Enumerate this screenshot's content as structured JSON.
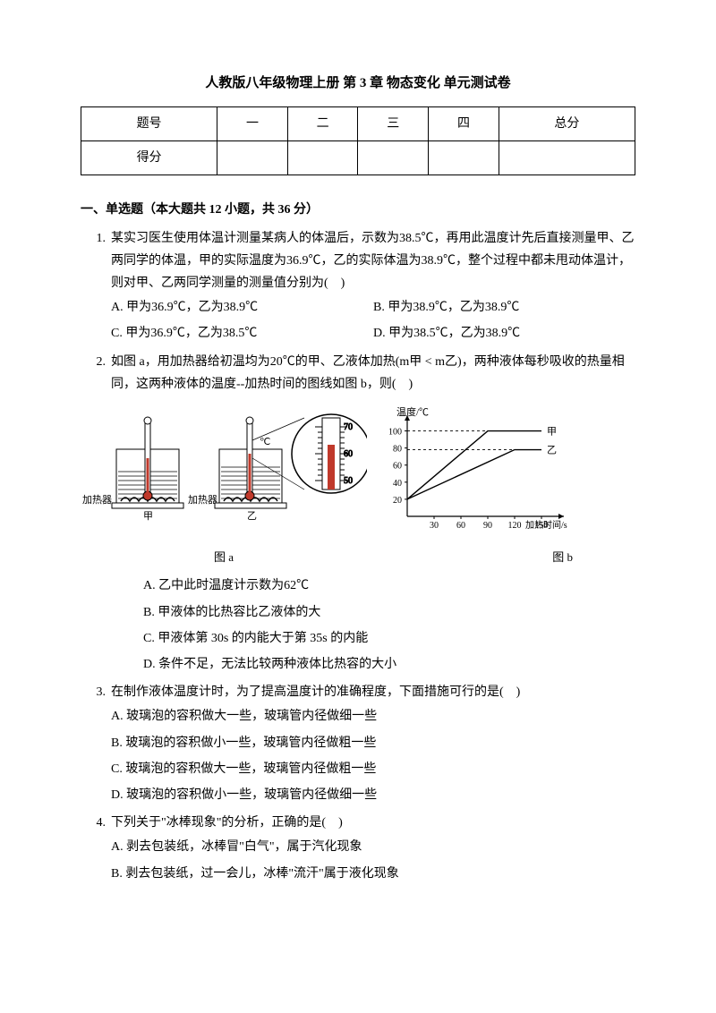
{
  "title": "人教版八年级物理上册 第 3 章 物态变化 单元测试卷",
  "scoreTable": {
    "rows": [
      [
        "题号",
        "一",
        "二",
        "三",
        "四",
        "总分"
      ],
      [
        "得分",
        "",
        "",
        "",
        "",
        ""
      ]
    ]
  },
  "section1": {
    "heading": "一、单选题（本大题共 12 小题，共 36 分）"
  },
  "q1": {
    "num": "1.",
    "text": "某实习医生使用体温计测量某病人的体温后，示数为38.5℃，再用此温度计先后直接测量甲、乙两同学的体温，甲的实际温度为36.9℃，乙的实际体温为38.9℃，整个过程中都未甩动体温计，则对甲、乙两同学测量的测量值分别为(　)",
    "A": "A. 甲为36.9℃，乙为38.9℃",
    "B": "B. 甲为38.9℃，乙为38.9℃",
    "C": "C. 甲为36.9℃，乙为38.5℃",
    "D": "D. 甲为38.5℃，乙为38.9℃"
  },
  "q2": {
    "num": "2.",
    "text": "如图 a，用加热器给初温均为20℃的甲、乙液体加热(m甲 < m乙)，两种液体每秒吸收的热量相同，这两种液体的温度--加热时间的图线如图 b，则(　)",
    "A": "A. 乙中此时温度计示数为62℃",
    "B": "B. 甲液体的比热容比乙液体的大",
    "C": "C. 甲液体第 30s 的内能大于第 35s 的内能",
    "D": "D. 条件不足，无法比较两种液体比热容的大小",
    "figA": {
      "heater_label": "加热器",
      "caption": "图 a",
      "thermo_ticks": [
        "70",
        "60",
        "50"
      ],
      "beaker1_label": "甲",
      "beaker2_label": "乙",
      "colors": {
        "liquid": "#d0d0d0",
        "mercury": "#c0392b",
        "line": "#000000",
        "bg": "#ffffff"
      }
    },
    "figB": {
      "caption": "图 b",
      "ylabel": "温度/℃",
      "xlabel": "加热时间/s",
      "yticks": [
        20,
        40,
        60,
        80,
        100
      ],
      "xticks": [
        30,
        60,
        90,
        120,
        150
      ],
      "ylim": [
        0,
        110
      ],
      "xlim": [
        0,
        160
      ],
      "series": {
        "jia": {
          "label": "甲",
          "points": [
            [
              0,
              20
            ],
            [
              90,
              100
            ],
            [
              150,
              100
            ]
          ]
        },
        "yi": {
          "label": "乙",
          "points": [
            [
              0,
              20
            ],
            [
              120,
              78
            ],
            [
              150,
              78
            ]
          ]
        }
      },
      "dash_y": [
        78,
        100
      ],
      "colors": {
        "axis": "#000000",
        "line": "#000000",
        "bg": "#ffffff"
      },
      "line_width": 1.4
    }
  },
  "q3": {
    "num": "3.",
    "text": "在制作液体温度计时，为了提高温度计的准确程度，下面措施可行的是(　)",
    "A": "A. 玻璃泡的容积做大一些，玻璃管内径做细一些",
    "B": "B. 玻璃泡的容积做小一些，玻璃管内径做粗一些",
    "C": "C. 玻璃泡的容积做大一些，玻璃管内径做粗一些",
    "D": "D. 玻璃泡的容积做小一些，玻璃管内径做细一些"
  },
  "q4": {
    "num": "4.",
    "text": "下列关于\"冰棒现象\"的分析，正确的是(　)",
    "A": "A. 剥去包装纸，冰棒冒\"白气\"，属于汽化现象",
    "B": "B. 剥去包装纸，过一会儿，冰棒\"流汗\"属于液化现象"
  }
}
